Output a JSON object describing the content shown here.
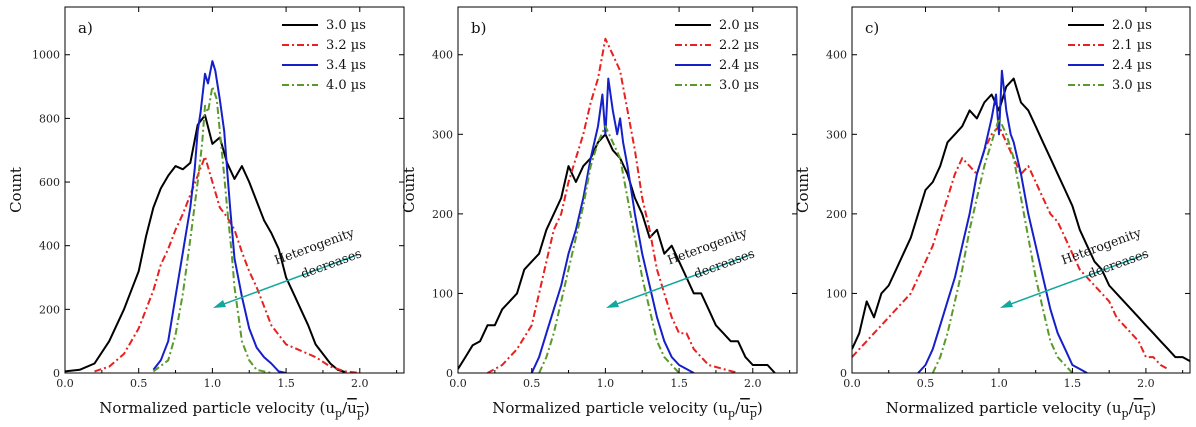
{
  "chart_data": [
    {
      "type": "line",
      "panel_label": "a)",
      "xlabel": "Normalized particle velocity (u p/u p)",
      "xlabel_parts": {
        "open": "Normalized particle velocity (u",
        "sub1": "p",
        "slash": "/",
        "over": "u",
        "sub2": "p",
        "close": ")"
      },
      "ylabel": "Count",
      "xlim": [
        0,
        2.3
      ],
      "ylim": [
        0,
        1150
      ],
      "xticks": [
        "0.0",
        "0.5",
        "1.0",
        "1.5",
        "2.0"
      ],
      "yticks": [
        "0",
        "200",
        "400",
        "600",
        "800",
        "1000"
      ],
      "annotation": [
        "Heterogenity",
        "decreases"
      ],
      "series": [
        {
          "name": "3.0 µs",
          "color": "#000000",
          "style": "solid",
          "x": [
            0.0,
            0.1,
            0.2,
            0.3,
            0.4,
            0.5,
            0.55,
            0.6,
            0.65,
            0.7,
            0.75,
            0.8,
            0.85,
            0.9,
            0.95,
            1.0,
            1.05,
            1.1,
            1.15,
            1.2,
            1.25,
            1.3,
            1.35,
            1.4,
            1.45,
            1.5,
            1.55,
            1.6,
            1.65,
            1.7,
            1.75,
            1.8,
            1.85,
            1.9
          ],
          "y": [
            5,
            10,
            30,
            100,
            200,
            320,
            430,
            520,
            580,
            620,
            650,
            640,
            660,
            780,
            810,
            720,
            740,
            660,
            610,
            650,
            600,
            540,
            480,
            440,
            390,
            300,
            250,
            200,
            150,
            90,
            60,
            30,
            10,
            3
          ]
        },
        {
          "name": "3.2 µs",
          "color": "#e8201f",
          "style": "dashdot",
          "x": [
            0.2,
            0.3,
            0.4,
            0.45,
            0.5,
            0.55,
            0.6,
            0.65,
            0.7,
            0.75,
            0.8,
            0.85,
            0.9,
            0.95,
            1.0,
            1.05,
            1.1,
            1.15,
            1.2,
            1.25,
            1.3,
            1.35,
            1.4,
            1.45,
            1.5,
            1.6,
            1.7,
            1.8,
            1.9,
            2.0
          ],
          "y": [
            5,
            20,
            60,
            100,
            140,
            200,
            260,
            340,
            390,
            450,
            500,
            560,
            620,
            680,
            600,
            520,
            490,
            450,
            380,
            320,
            270,
            210,
            150,
            120,
            90,
            70,
            50,
            20,
            5,
            0
          ]
        },
        {
          "name": "3.4 µs",
          "color": "#1520c8",
          "style": "solid",
          "x": [
            0.6,
            0.65,
            0.7,
            0.75,
            0.8,
            0.85,
            0.88,
            0.9,
            0.92,
            0.95,
            0.97,
            1.0,
            1.02,
            1.05,
            1.08,
            1.1,
            1.12,
            1.15,
            1.2,
            1.25,
            1.3,
            1.35,
            1.4,
            1.45,
            1.5
          ],
          "y": [
            10,
            40,
            100,
            240,
            380,
            520,
            640,
            760,
            820,
            940,
            910,
            980,
            950,
            860,
            760,
            640,
            520,
            360,
            240,
            140,
            80,
            50,
            30,
            5,
            0
          ]
        },
        {
          "name": "4.0 µs",
          "color": "#5a9a2a",
          "style": "dashdot",
          "x": [
            0.6,
            0.7,
            0.75,
            0.8,
            0.85,
            0.9,
            0.93,
            0.95,
            0.97,
            1.0,
            1.03,
            1.05,
            1.08,
            1.1,
            1.13,
            1.15,
            1.2,
            1.25,
            1.3,
            1.4
          ],
          "y": [
            5,
            40,
            120,
            250,
            420,
            600,
            720,
            840,
            820,
            900,
            860,
            760,
            620,
            520,
            380,
            270,
            100,
            40,
            10,
            0
          ]
        }
      ]
    },
    {
      "type": "line",
      "panel_label": "b)",
      "xlabel": "Normalized particle velocity (u p/u p)",
      "xlabel_parts": {
        "open": "Normalized particle velocity (u",
        "sub1": "p",
        "slash": "/",
        "over": "u",
        "sub2": "p",
        "close": ")"
      },
      "ylabel": "Count",
      "xlim": [
        0,
        2.3
      ],
      "ylim": [
        0,
        460
      ],
      "xticks": [
        "0.0",
        "0.5",
        "1.0",
        "1.5",
        "2.0"
      ],
      "yticks": [
        "0",
        "100",
        "200",
        "300",
        "400"
      ],
      "annotation": [
        "Heterogenity",
        "decreases"
      ],
      "series": [
        {
          "name": "2.0 µs",
          "color": "#000000",
          "style": "solid",
          "x": [
            0.0,
            0.05,
            0.1,
            0.15,
            0.2,
            0.25,
            0.3,
            0.35,
            0.4,
            0.45,
            0.5,
            0.55,
            0.6,
            0.65,
            0.7,
            0.75,
            0.8,
            0.85,
            0.9,
            0.95,
            1.0,
            1.05,
            1.1,
            1.15,
            1.2,
            1.25,
            1.3,
            1.35,
            1.4,
            1.45,
            1.5,
            1.55,
            1.6,
            1.65,
            1.7,
            1.75,
            1.8,
            1.85,
            1.9,
            1.95,
            2.0,
            2.05,
            2.1,
            2.15
          ],
          "y": [
            5,
            20,
            35,
            40,
            60,
            60,
            80,
            90,
            100,
            130,
            140,
            150,
            180,
            200,
            220,
            260,
            240,
            260,
            270,
            290,
            300,
            280,
            270,
            250,
            220,
            200,
            170,
            180,
            150,
            160,
            140,
            120,
            100,
            100,
            80,
            60,
            50,
            40,
            40,
            20,
            10,
            10,
            10,
            0
          ]
        },
        {
          "name": "2.2 µs",
          "color": "#e8201f",
          "style": "dashdot",
          "x": [
            0.2,
            0.3,
            0.4,
            0.5,
            0.55,
            0.6,
            0.65,
            0.7,
            0.75,
            0.8,
            0.85,
            0.9,
            0.95,
            1.0,
            1.05,
            1.1,
            1.15,
            1.2,
            1.25,
            1.3,
            1.35,
            1.4,
            1.45,
            1.5,
            1.55,
            1.6,
            1.65,
            1.7,
            1.8,
            1.9
          ],
          "y": [
            0,
            10,
            30,
            60,
            100,
            140,
            180,
            200,
            240,
            270,
            300,
            340,
            370,
            420,
            400,
            380,
            330,
            280,
            220,
            180,
            130,
            100,
            70,
            50,
            50,
            30,
            20,
            10,
            5,
            0
          ]
        },
        {
          "name": "2.4 µs",
          "color": "#1520c8",
          "style": "solid",
          "x": [
            0.5,
            0.55,
            0.6,
            0.65,
            0.7,
            0.75,
            0.8,
            0.85,
            0.9,
            0.95,
            0.98,
            1.0,
            1.02,
            1.05,
            1.08,
            1.1,
            1.12,
            1.15,
            1.2,
            1.25,
            1.3,
            1.35,
            1.4,
            1.45,
            1.5,
            1.55,
            1.6
          ],
          "y": [
            0,
            20,
            50,
            80,
            110,
            150,
            180,
            220,
            270,
            310,
            350,
            300,
            370,
            330,
            300,
            320,
            290,
            260,
            200,
            150,
            110,
            70,
            40,
            20,
            10,
            5,
            0
          ]
        },
        {
          "name": "3.0 µs",
          "color": "#5a9a2a",
          "style": "dashdot",
          "x": [
            0.55,
            0.6,
            0.65,
            0.7,
            0.75,
            0.8,
            0.85,
            0.9,
            0.95,
            1.0,
            1.05,
            1.1,
            1.15,
            1.2,
            1.25,
            1.3,
            1.35,
            1.4,
            1.5
          ],
          "y": [
            0,
            20,
            50,
            90,
            130,
            170,
            210,
            260,
            290,
            310,
            290,
            270,
            220,
            170,
            120,
            80,
            40,
            20,
            0
          ]
        }
      ]
    },
    {
      "type": "line",
      "panel_label": "c)",
      "xlabel": "Normalized particle velocity (u p/u p)",
      "xlabel_parts": {
        "open": "Normalized particle velocity (u",
        "sub1": "p",
        "slash": "/",
        "over": "u",
        "sub2": "p",
        "close": ")"
      },
      "ylabel": "Count",
      "xlim": [
        0,
        2.3
      ],
      "ylim": [
        0,
        460
      ],
      "xticks": [
        "0.0",
        "0.5",
        "1.0",
        "1.5",
        "2.0"
      ],
      "yticks": [
        "0",
        "100",
        "200",
        "300",
        "400"
      ],
      "annotation": [
        "Heterogenity",
        "decreases"
      ],
      "series": [
        {
          "name": "2.0 µs",
          "color": "#000000",
          "style": "solid",
          "x": [
            0.0,
            0.05,
            0.1,
            0.15,
            0.2,
            0.25,
            0.3,
            0.35,
            0.4,
            0.45,
            0.5,
            0.55,
            0.6,
            0.65,
            0.7,
            0.75,
            0.8,
            0.85,
            0.9,
            0.95,
            1.0,
            1.05,
            1.1,
            1.15,
            1.2,
            1.25,
            1.3,
            1.35,
            1.4,
            1.45,
            1.5,
            1.55,
            1.6,
            1.65,
            1.7,
            1.75,
            1.8,
            1.85,
            1.9,
            1.95,
            2.0,
            2.05,
            2.1,
            2.15,
            2.2,
            2.25,
            2.3
          ],
          "y": [
            30,
            50,
            90,
            70,
            100,
            110,
            130,
            150,
            170,
            200,
            230,
            240,
            260,
            290,
            300,
            310,
            330,
            320,
            340,
            350,
            330,
            360,
            370,
            340,
            330,
            310,
            290,
            270,
            250,
            230,
            210,
            180,
            160,
            140,
            130,
            110,
            100,
            90,
            80,
            70,
            60,
            50,
            40,
            30,
            20,
            20,
            15
          ]
        },
        {
          "name": "2.1 µs",
          "color": "#e8201f",
          "style": "dashdot",
          "x": [
            0.0,
            0.05,
            0.1,
            0.15,
            0.2,
            0.25,
            0.3,
            0.35,
            0.4,
            0.45,
            0.5,
            0.55,
            0.6,
            0.65,
            0.7,
            0.75,
            0.8,
            0.85,
            0.9,
            0.95,
            1.0,
            1.05,
            1.1,
            1.15,
            1.2,
            1.25,
            1.3,
            1.35,
            1.4,
            1.45,
            1.5,
            1.55,
            1.6,
            1.65,
            1.7,
            1.75,
            1.8,
            1.85,
            1.9,
            1.95,
            2.0,
            2.05,
            2.1,
            2.15
          ],
          "y": [
            20,
            30,
            40,
            50,
            60,
            70,
            80,
            90,
            100,
            120,
            140,
            160,
            190,
            220,
            250,
            270,
            260,
            250,
            280,
            300,
            310,
            290,
            270,
            250,
            260,
            240,
            220,
            200,
            190,
            170,
            150,
            130,
            120,
            110,
            100,
            90,
            70,
            60,
            50,
            40,
            20,
            20,
            10,
            5
          ]
        },
        {
          "name": "2.4 µs",
          "color": "#1520c8",
          "style": "solid",
          "x": [
            0.45,
            0.5,
            0.55,
            0.6,
            0.65,
            0.7,
            0.75,
            0.8,
            0.85,
            0.9,
            0.95,
            0.98,
            1.0,
            1.02,
            1.05,
            1.08,
            1.1,
            1.15,
            1.2,
            1.25,
            1.3,
            1.35,
            1.4,
            1.45,
            1.5,
            1.55,
            1.6
          ],
          "y": [
            0,
            10,
            30,
            60,
            90,
            120,
            160,
            200,
            250,
            280,
            320,
            350,
            300,
            380,
            330,
            300,
            290,
            250,
            200,
            160,
            120,
            80,
            50,
            30,
            10,
            5,
            0
          ]
        },
        {
          "name": "3.0 µs",
          "color": "#5a9a2a",
          "style": "dashdot",
          "x": [
            0.55,
            0.6,
            0.65,
            0.7,
            0.75,
            0.8,
            0.85,
            0.9,
            0.95,
            1.0,
            1.05,
            1.1,
            1.15,
            1.2,
            1.25,
            1.3,
            1.35,
            1.4,
            1.5
          ],
          "y": [
            0,
            20,
            50,
            90,
            130,
            180,
            220,
            260,
            290,
            320,
            300,
            270,
            220,
            170,
            120,
            80,
            40,
            20,
            0
          ]
        }
      ]
    }
  ]
}
